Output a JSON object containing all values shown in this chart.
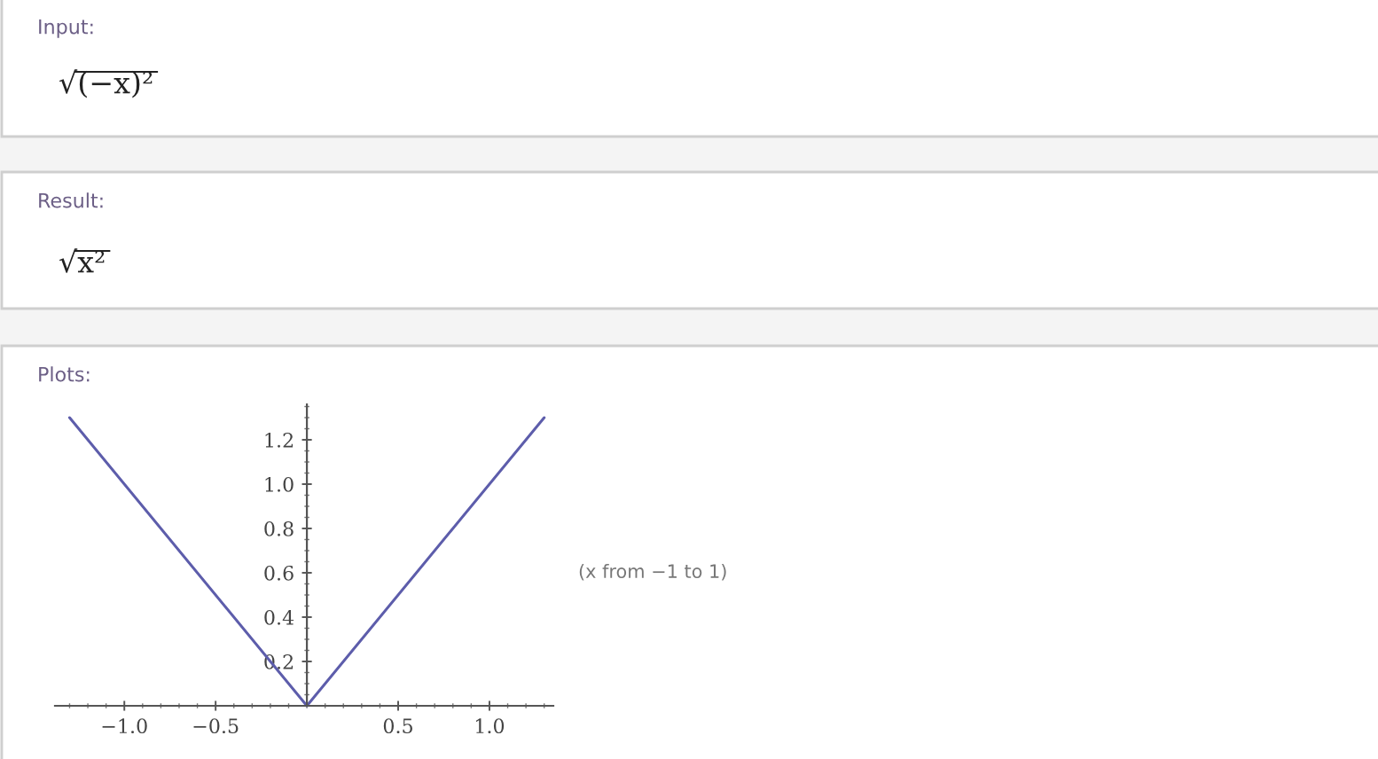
{
  "chart_data": {
    "type": "line",
    "title": "Plots:",
    "annotations": [
      "Input:",
      "√(−x)²",
      "Result:",
      "√x²",
      "(x from −1 to 1)"
    ],
    "x": [
      -1.3,
      0,
      1.3
    ],
    "series": [
      {
        "color": "#5d5dab",
        "values": [
          1.3,
          0,
          1.3
        ]
      }
    ],
    "xlim": [
      -1.38,
      1.35
    ],
    "ylim": [
      0,
      1.36
    ],
    "xticks": [
      {
        "value": -1,
        "label": "−1.0"
      },
      {
        "value": -0.5,
        "label": "−0.5"
      },
      0.5,
      {
        "value": 1,
        "label": "1.0"
      }
    ],
    "yticks": [
      0.2,
      0.4,
      0.6,
      0.8,
      {
        "value": 1,
        "label": "1.0"
      },
      1.2
    ]
  }
}
